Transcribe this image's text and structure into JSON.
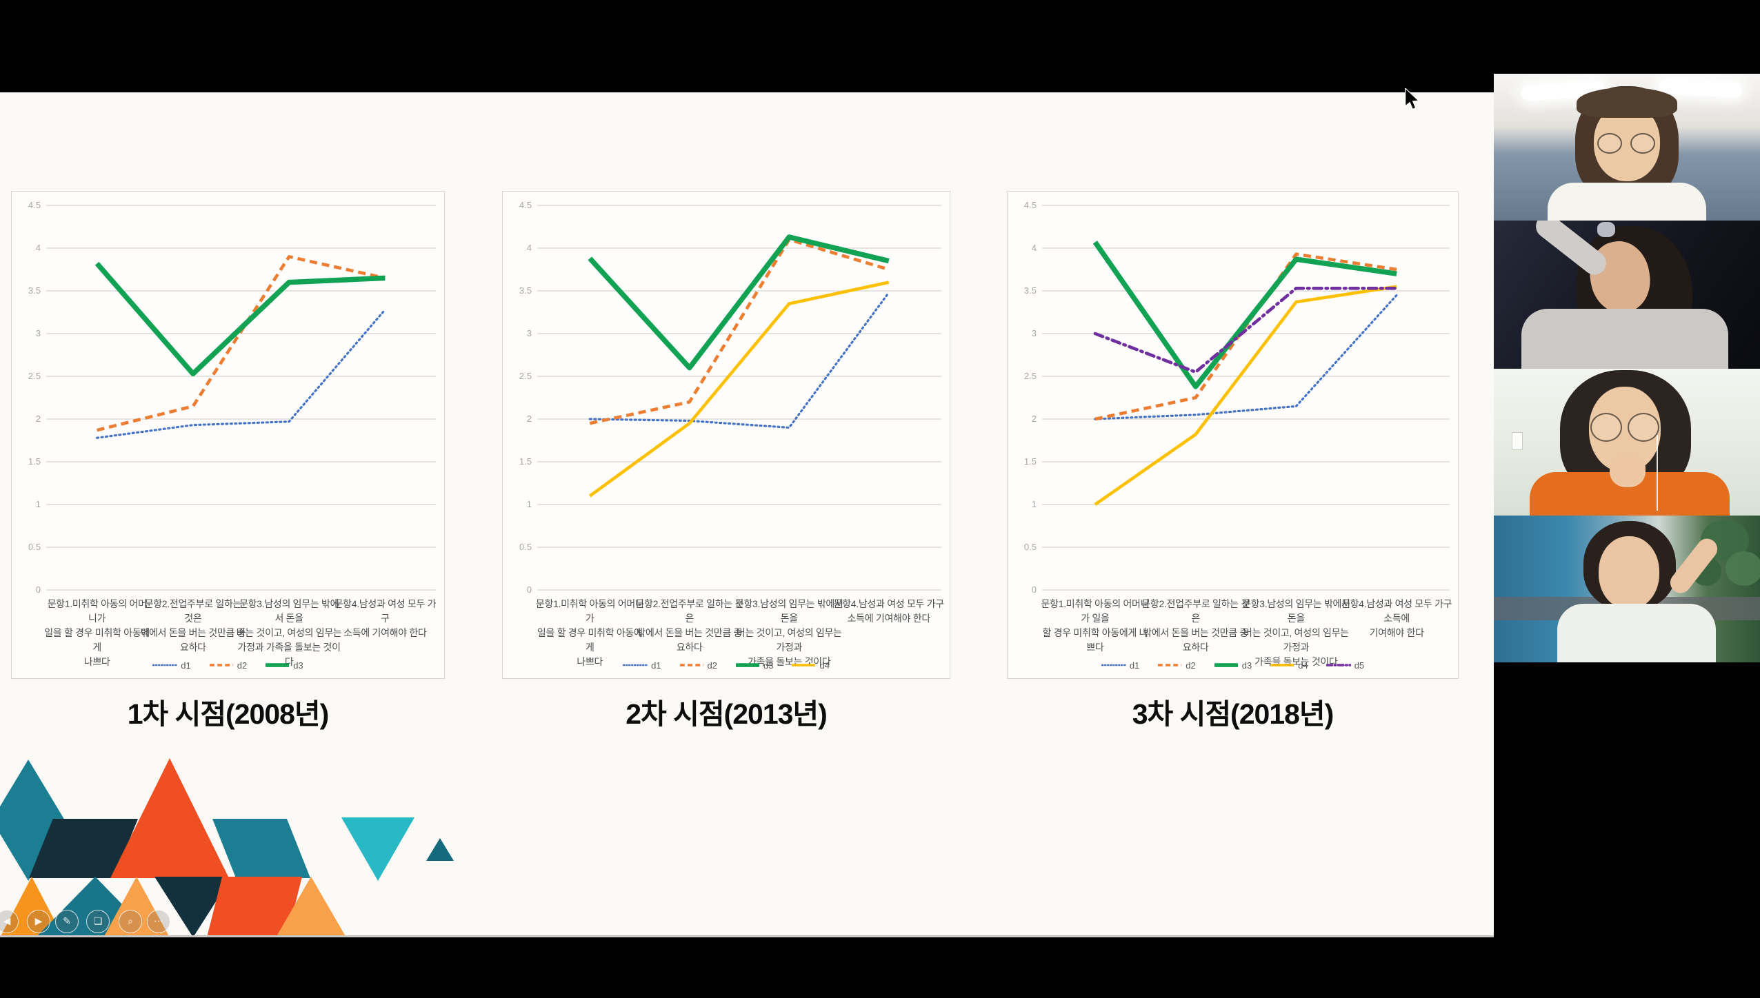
{
  "window": {
    "background": "#000000",
    "slide_background": "#fbfaf7",
    "chart_border": "#d9d6d1"
  },
  "chart_data": [
    {
      "type": "line",
      "title": "1차 시점(2008년)",
      "xlabel": "",
      "ylabel": "",
      "ylim": [
        0,
        4.5
      ],
      "ytick_step": 0.5,
      "grid": true,
      "legend_position": "bottom",
      "categories": [
        [
          "문항1.미취학 아동의 어머니가",
          "일을 할 경우 미취학 아동에게",
          "나쁘다"
        ],
        [
          "문항2.전업주부로 일하는 것은",
          "밖에서 돈을 버는 것만큼 중요하다"
        ],
        [
          "문항3.남성의 임무는 밖에서 돈을",
          "버는 것이고, 여성의 임무는",
          "가정과 가족을 돌보는 것이다"
        ],
        [
          "문항4.남성과 여성 모두 가구",
          "소득에 기여해야 한다"
        ]
      ],
      "series": [
        {
          "name": "d1",
          "color": "#4472c4",
          "line_style": "dotted",
          "values": [
            1.78,
            1.93,
            1.97,
            3.28
          ]
        },
        {
          "name": "d2",
          "color": "#ed7d31",
          "line_style": "dashed",
          "values": [
            1.87,
            2.15,
            3.9,
            3.65
          ]
        },
        {
          "name": "d3",
          "color": "#12a254",
          "line_style": "solid_thick",
          "values": [
            3.82,
            2.53,
            3.6,
            3.65
          ]
        }
      ]
    },
    {
      "type": "line",
      "title": "2차 시점(2013년)",
      "xlabel": "",
      "ylabel": "",
      "ylim": [
        0,
        4.5
      ],
      "ytick_step": 0.5,
      "grid": true,
      "legend_position": "bottom",
      "categories": [
        [
          "문항1.미취학 아동의 어머니가",
          "일을 할 경우 미취학 아동에게",
          "나쁘다"
        ],
        [
          "문항2.전업주부로 일하는 것은",
          "밖에서 돈을 버는 것만큼 중요하다"
        ],
        [
          "문항3.남성의 임무는 밖에서 돈을",
          "버는 것이고, 여성의 임무는 가정과",
          "가족을 돌보는 것이다"
        ],
        [
          "문항4.남성과 여성 모두 가구",
          "소득에 기여해야 한다"
        ]
      ],
      "series": [
        {
          "name": "d1",
          "color": "#4472c4",
          "line_style": "dotted",
          "values": [
            2.0,
            1.98,
            1.9,
            3.48
          ]
        },
        {
          "name": "d2",
          "color": "#ed7d31",
          "line_style": "dashed",
          "values": [
            1.95,
            2.2,
            4.1,
            3.75
          ]
        },
        {
          "name": "d3",
          "color": "#12a254",
          "line_style": "solid_thick",
          "values": [
            3.88,
            2.6,
            4.13,
            3.85
          ]
        },
        {
          "name": "d4",
          "color": "#ffc000",
          "line_style": "solid",
          "values": [
            1.1,
            1.95,
            3.35,
            3.6
          ]
        }
      ]
    },
    {
      "type": "line",
      "title": "3차 시점(2018년)",
      "xlabel": "",
      "ylabel": "",
      "ylim": [
        0,
        4.5
      ],
      "ytick_step": 0.5,
      "grid": true,
      "legend_position": "bottom",
      "categories": [
        [
          "문항1.미취학 아동의 어머니가 일을",
          "할 경우 미취학 아동에게 나쁘다"
        ],
        [
          "문항2.전업주부로 일하는 것은",
          "밖에서 돈을 버는 것만큼 중요하다"
        ],
        [
          "문항3.남성의 임무는 밖에서 돈을",
          "버는 것이고, 여성의 임무는 가정과",
          "가족을 돌보는 것이다"
        ],
        [
          "문항4.남성과 여성 모두 가구 소득에",
          "기여해야 한다"
        ]
      ],
      "series": [
        {
          "name": "d1",
          "color": "#4472c4",
          "line_style": "dotted",
          "values": [
            2.0,
            2.05,
            2.15,
            3.45
          ]
        },
        {
          "name": "d2",
          "color": "#ed7d31",
          "line_style": "dashed",
          "values": [
            2.0,
            2.25,
            3.93,
            3.75
          ]
        },
        {
          "name": "d3",
          "color": "#12a254",
          "line_style": "solid_thick",
          "values": [
            4.07,
            2.38,
            3.87,
            3.7
          ]
        },
        {
          "name": "d4",
          "color": "#ffc000",
          "line_style": "solid",
          "values": [
            1.0,
            1.82,
            3.37,
            3.55
          ]
        },
        {
          "name": "d5",
          "color": "#7030a0",
          "line_style": "dash_dot",
          "values": [
            3.0,
            2.55,
            3.53,
            3.53
          ]
        }
      ]
    }
  ],
  "toolbar": {
    "buttons": [
      {
        "name": "previous-slide",
        "glyph": "◀"
      },
      {
        "name": "next-slide",
        "glyph": "▶"
      },
      {
        "name": "pen-tool",
        "glyph": "✎"
      },
      {
        "name": "all-slides",
        "glyph": "❏"
      },
      {
        "name": "zoom-slide",
        "glyph": "⌕"
      },
      {
        "name": "more-options",
        "glyph": "⋯"
      }
    ]
  },
  "participants": [
    {
      "name": "participant-video-1",
      "description": "woman with glasses, bright meeting room"
    },
    {
      "name": "participant-video-2",
      "description": "woman applying eye drops, dark room"
    },
    {
      "name": "participant-video-3",
      "description": "woman in orange shirt with round glasses"
    },
    {
      "name": "participant-video-4",
      "description": "woman in white top at a cafe"
    }
  ]
}
